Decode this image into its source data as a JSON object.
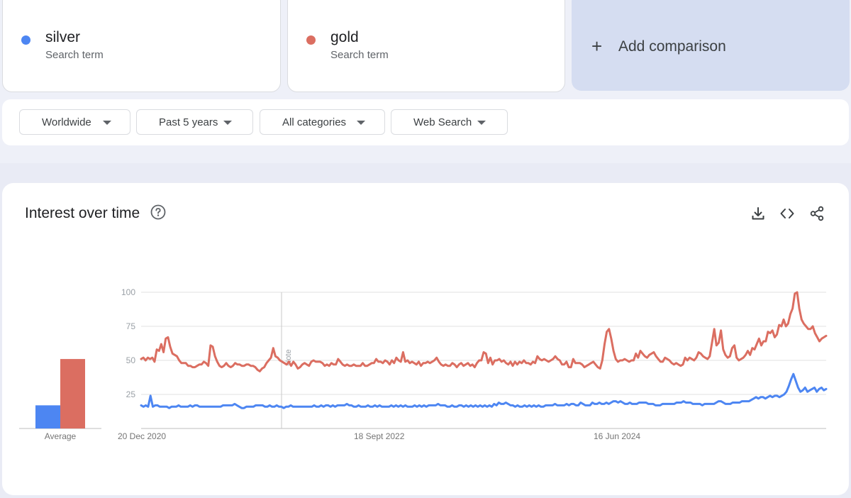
{
  "terms": [
    {
      "name": "silver",
      "sub": "Search term",
      "color": "#4d86f2"
    },
    {
      "name": "gold",
      "sub": "Search term",
      "color": "#db6e61"
    }
  ],
  "add_comparison": {
    "plus": "+",
    "label": "Add comparison"
  },
  "filters": {
    "region": "Worldwide",
    "period": "Past 5 years",
    "category": "All categories",
    "search_type": "Web Search"
  },
  "chart_panel": {
    "title": "Interest over time",
    "note_label": "Note",
    "average_label": "Average",
    "icons": [
      "help-icon",
      "download-icon",
      "embed-icon",
      "share-icon"
    ]
  },
  "chart_data": {
    "type": "line",
    "ylim": [
      0,
      100
    ],
    "yticks": [
      100,
      75,
      50,
      25
    ],
    "x_tick_labels": [
      "20 Dec 2020",
      "18 Sept 2022",
      "16 Jun 2024"
    ],
    "averages": {
      "silver": 17,
      "gold": 51
    },
    "series": [
      {
        "name": "silver",
        "color": "#4d86f2",
        "values": [
          17,
          16,
          17,
          16,
          24,
          16,
          17,
          17,
          16,
          16,
          16,
          16,
          15,
          16,
          16,
          16,
          17,
          16,
          16,
          16,
          16,
          17,
          16,
          17,
          17,
          16,
          16,
          16,
          16,
          16,
          16,
          16,
          16,
          16,
          16,
          17,
          17,
          17,
          17,
          17,
          18,
          17,
          16,
          15,
          15,
          16,
          16,
          16,
          16,
          17,
          17,
          17,
          17,
          16,
          16,
          17,
          16,
          16,
          17,
          16,
          16,
          15,
          16,
          16,
          17,
          16,
          16,
          16,
          16,
          16,
          16,
          16,
          16,
          16,
          17,
          16,
          16,
          17,
          16,
          17,
          17,
          16,
          17,
          16,
          17,
          17,
          17,
          17,
          18,
          17,
          17,
          16,
          16,
          17,
          16,
          16,
          16,
          17,
          16,
          16,
          17,
          16,
          17,
          16,
          16,
          16,
          16,
          17,
          16,
          17,
          16,
          17,
          16,
          17,
          16,
          16,
          16,
          17,
          16,
          17,
          16,
          17,
          16,
          17,
          17,
          17,
          17,
          18,
          17,
          17,
          17,
          16,
          16,
          17,
          16,
          16,
          17,
          17,
          16,
          17,
          16,
          17,
          16,
          17,
          16,
          17,
          16,
          17,
          16,
          17,
          16,
          18,
          17,
          19,
          18,
          18,
          19,
          18,
          17,
          17,
          16,
          17,
          16,
          16,
          17,
          16,
          17,
          16,
          17,
          16,
          17,
          16,
          16,
          17,
          17,
          17,
          17,
          18,
          17,
          17,
          17,
          17,
          18,
          17,
          18,
          18,
          17,
          17,
          19,
          18,
          17,
          17,
          17,
          19,
          18,
          18,
          19,
          18,
          18,
          19,
          18,
          19,
          20,
          20,
          19,
          20,
          19,
          18,
          18,
          19,
          18,
          18,
          18,
          19,
          19,
          19,
          19,
          18,
          18,
          18,
          17,
          17,
          17,
          18,
          18,
          18,
          18,
          18,
          18,
          19,
          19,
          19,
          20,
          19,
          19,
          19,
          18,
          18,
          18,
          18,
          17,
          18,
          18,
          18,
          18,
          18,
          19,
          20,
          20,
          19,
          18,
          18,
          18,
          19,
          19,
          19,
          19,
          20,
          20,
          20,
          20,
          21,
          22,
          23,
          22,
          23,
          23,
          22,
          23,
          24,
          23,
          24,
          24,
          23,
          24,
          25,
          27,
          31,
          36,
          40,
          35,
          30,
          27,
          28,
          30,
          27,
          28,
          29,
          30,
          27,
          29,
          30,
          28,
          29
        ]
      },
      {
        "name": "gold",
        "color": "#db6e61",
        "values": [
          51,
          52,
          50,
          52,
          51,
          52,
          49,
          58,
          57,
          62,
          56,
          66,
          67,
          60,
          55,
          54,
          53,
          50,
          48,
          48,
          48,
          46,
          46,
          45,
          45,
          46,
          47,
          47,
          49,
          48,
          46,
          61,
          60,
          53,
          49,
          46,
          45,
          46,
          48,
          46,
          45,
          46,
          48,
          47,
          47,
          46,
          46,
          47,
          47,
          46,
          46,
          45,
          43,
          42,
          44,
          45,
          48,
          50,
          52,
          59,
          53,
          52,
          50,
          49,
          48,
          47,
          49,
          46,
          49,
          47,
          44,
          45,
          47,
          48,
          47,
          46,
          49,
          50,
          49,
          49,
          49,
          48,
          46,
          47,
          46,
          48,
          47,
          47,
          51,
          49,
          47,
          46,
          47,
          46,
          46,
          47,
          46,
          46,
          46,
          48,
          46,
          46,
          47,
          48,
          48,
          51,
          49,
          49,
          48,
          50,
          49,
          47,
          50,
          48,
          52,
          50,
          49,
          56,
          49,
          50,
          48,
          49,
          48,
          47,
          49,
          46,
          48,
          48,
          49,
          48,
          49,
          50,
          52,
          49,
          47,
          46,
          47,
          46,
          46,
          48,
          47,
          45,
          47,
          48,
          46,
          47,
          48,
          46,
          47,
          45,
          48,
          50,
          50,
          56,
          55,
          48,
          52,
          47,
          50,
          50,
          51,
          49,
          50,
          48,
          47,
          49,
          46,
          49,
          47,
          49,
          48,
          50,
          48,
          48,
          47,
          49,
          48,
          53,
          51,
          50,
          51,
          50,
          49,
          50,
          51,
          53,
          51,
          50,
          47,
          47,
          49,
          45,
          45,
          51,
          48,
          48,
          48,
          47,
          45,
          46,
          47,
          48,
          49,
          47,
          45,
          44,
          50,
          62,
          71,
          73,
          66,
          57,
          51,
          49,
          50,
          50,
          51,
          50,
          49,
          50,
          50,
          55,
          52,
          57,
          55,
          53,
          52,
          54,
          55,
          56,
          53,
          51,
          49,
          49,
          52,
          51,
          50,
          48,
          47,
          48,
          47,
          46,
          47,
          52,
          50,
          52,
          51,
          50,
          52,
          56,
          55,
          53,
          52,
          51,
          53,
          63,
          73,
          61,
          63,
          72,
          58,
          54,
          52,
          53,
          59,
          61,
          52,
          50,
          51,
          52,
          54,
          57,
          54,
          59,
          58,
          62,
          66,
          61,
          64,
          64,
          71,
          70,
          72,
          67,
          69,
          76,
          75,
          80,
          75,
          77,
          84,
          88,
          99,
          100,
          88,
          80,
          77,
          75,
          73,
          73,
          75,
          70,
          67,
          64,
          66,
          67,
          68
        ]
      }
    ]
  }
}
